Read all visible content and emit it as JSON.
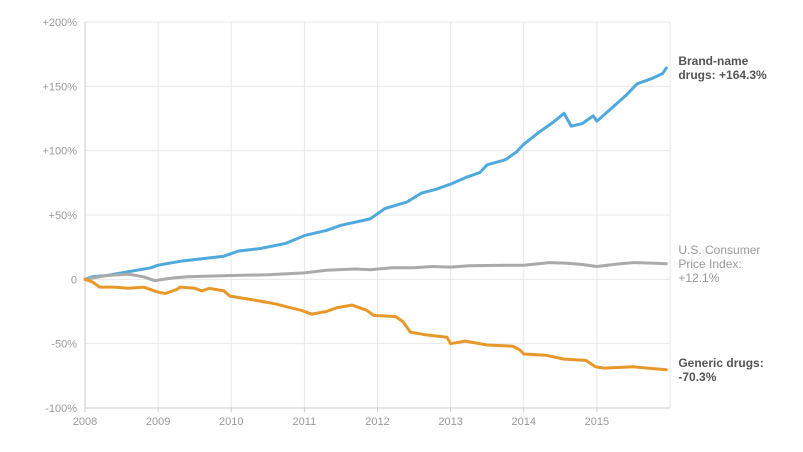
{
  "chart_data": {
    "type": "line",
    "title": "",
    "xlabel": "",
    "ylabel": "",
    "x_ticks": [
      "2008",
      "2009",
      "2010",
      "2011",
      "2012",
      "2013",
      "2014",
      "2015"
    ],
    "y_ticks": [
      "+200%",
      "+150%",
      "+100%",
      "+50%",
      "0",
      "-50%",
      "-100%"
    ],
    "y_tick_values": [
      200,
      150,
      100,
      50,
      0,
      -50,
      -100
    ],
    "xlim": [
      2008,
      2016
    ],
    "ylim": [
      -100,
      200
    ],
    "grid": true,
    "legend": "direct labels at right end of each line",
    "series": [
      {
        "key": "brand",
        "label_lines": [
          "Brand-name",
          "drugs: +164.3%"
        ],
        "color": "#4fa9dc",
        "label_color": "#555555",
        "label_bold": true,
        "points": [
          [
            2008.0,
            0
          ],
          [
            2008.1,
            2
          ],
          [
            2008.3,
            3
          ],
          [
            2008.6,
            6
          ],
          [
            2008.9,
            9
          ],
          [
            2009.0,
            11
          ],
          [
            2009.3,
            14
          ],
          [
            2009.6,
            16
          ],
          [
            2009.9,
            18
          ],
          [
            2010.1,
            22
          ],
          [
            2010.4,
            24
          ],
          [
            2010.75,
            28
          ],
          [
            2011.0,
            34
          ],
          [
            2011.3,
            38
          ],
          [
            2011.5,
            42
          ],
          [
            2011.9,
            47
          ],
          [
            2012.1,
            55
          ],
          [
            2012.4,
            60
          ],
          [
            2012.6,
            67
          ],
          [
            2012.8,
            70
          ],
          [
            2013.0,
            74
          ],
          [
            2013.2,
            79
          ],
          [
            2013.4,
            83
          ],
          [
            2013.5,
            89
          ],
          [
            2013.75,
            93
          ],
          [
            2013.9,
            99
          ],
          [
            2014.0,
            105
          ],
          [
            2014.2,
            114
          ],
          [
            2014.4,
            122
          ],
          [
            2014.55,
            129
          ],
          [
            2014.65,
            119
          ],
          [
            2014.8,
            121
          ],
          [
            2014.95,
            127
          ],
          [
            2015.0,
            123
          ],
          [
            2015.2,
            133
          ],
          [
            2015.4,
            143
          ],
          [
            2015.55,
            152
          ],
          [
            2015.75,
            156
          ],
          [
            2015.9,
            160
          ],
          [
            2015.95,
            164.3
          ]
        ]
      },
      {
        "key": "cpi",
        "label_lines": [
          "U.S. Consumer",
          "Price Index:",
          "+12.1%"
        ],
        "color": "#aaaaaa",
        "label_color": "#999999",
        "label_bold": false,
        "points": [
          [
            2008.0,
            0
          ],
          [
            2008.3,
            3
          ],
          [
            2008.6,
            4
          ],
          [
            2008.8,
            2
          ],
          [
            2008.95,
            -1
          ],
          [
            2009.2,
            1
          ],
          [
            2009.4,
            2
          ],
          [
            2009.7,
            2.5
          ],
          [
            2010.0,
            3
          ],
          [
            2010.5,
            3.5
          ],
          [
            2011.0,
            5
          ],
          [
            2011.3,
            7
          ],
          [
            2011.7,
            8
          ],
          [
            2011.9,
            7.5
          ],
          [
            2012.2,
            9
          ],
          [
            2012.5,
            9
          ],
          [
            2012.75,
            10
          ],
          [
            2013.0,
            9.5
          ],
          [
            2013.25,
            10.5
          ],
          [
            2013.75,
            11
          ],
          [
            2014.0,
            11
          ],
          [
            2014.35,
            13
          ],
          [
            2014.6,
            12.5
          ],
          [
            2014.8,
            11.5
          ],
          [
            2015.0,
            10
          ],
          [
            2015.3,
            12
          ],
          [
            2015.5,
            13
          ],
          [
            2015.8,
            12.5
          ],
          [
            2015.95,
            12.1
          ]
        ]
      },
      {
        "key": "generic",
        "label_lines": [
          "Generic drugs:",
          "-70.3%"
        ],
        "color": "#e8982a",
        "label_color": "#555555",
        "label_bold": true,
        "points": [
          [
            2008.0,
            0
          ],
          [
            2008.1,
            -2
          ],
          [
            2008.2,
            -6
          ],
          [
            2008.4,
            -6
          ],
          [
            2008.6,
            -7
          ],
          [
            2008.8,
            -6
          ],
          [
            2009.0,
            -10
          ],
          [
            2009.1,
            -11
          ],
          [
            2009.25,
            -8
          ],
          [
            2009.3,
            -6
          ],
          [
            2009.5,
            -7
          ],
          [
            2009.6,
            -9
          ],
          [
            2009.7,
            -7
          ],
          [
            2009.9,
            -9
          ],
          [
            2009.98,
            -13
          ],
          [
            2010.3,
            -16
          ],
          [
            2010.6,
            -19
          ],
          [
            2010.8,
            -22
          ],
          [
            2010.95,
            -24
          ],
          [
            2011.1,
            -27
          ],
          [
            2011.3,
            -25
          ],
          [
            2011.45,
            -22
          ],
          [
            2011.65,
            -20
          ],
          [
            2011.85,
            -24
          ],
          [
            2011.95,
            -28
          ],
          [
            2012.25,
            -29
          ],
          [
            2012.35,
            -33
          ],
          [
            2012.45,
            -41
          ],
          [
            2012.65,
            -43
          ],
          [
            2012.95,
            -45
          ],
          [
            2013.0,
            -50
          ],
          [
            2013.2,
            -48
          ],
          [
            2013.5,
            -51
          ],
          [
            2013.85,
            -52
          ],
          [
            2013.95,
            -55
          ],
          [
            2014.0,
            -58
          ],
          [
            2014.3,
            -59
          ],
          [
            2014.55,
            -62
          ],
          [
            2014.85,
            -63
          ],
          [
            2014.98,
            -68
          ],
          [
            2015.1,
            -69
          ],
          [
            2015.5,
            -68
          ],
          [
            2015.95,
            -70.3
          ]
        ]
      }
    ]
  }
}
